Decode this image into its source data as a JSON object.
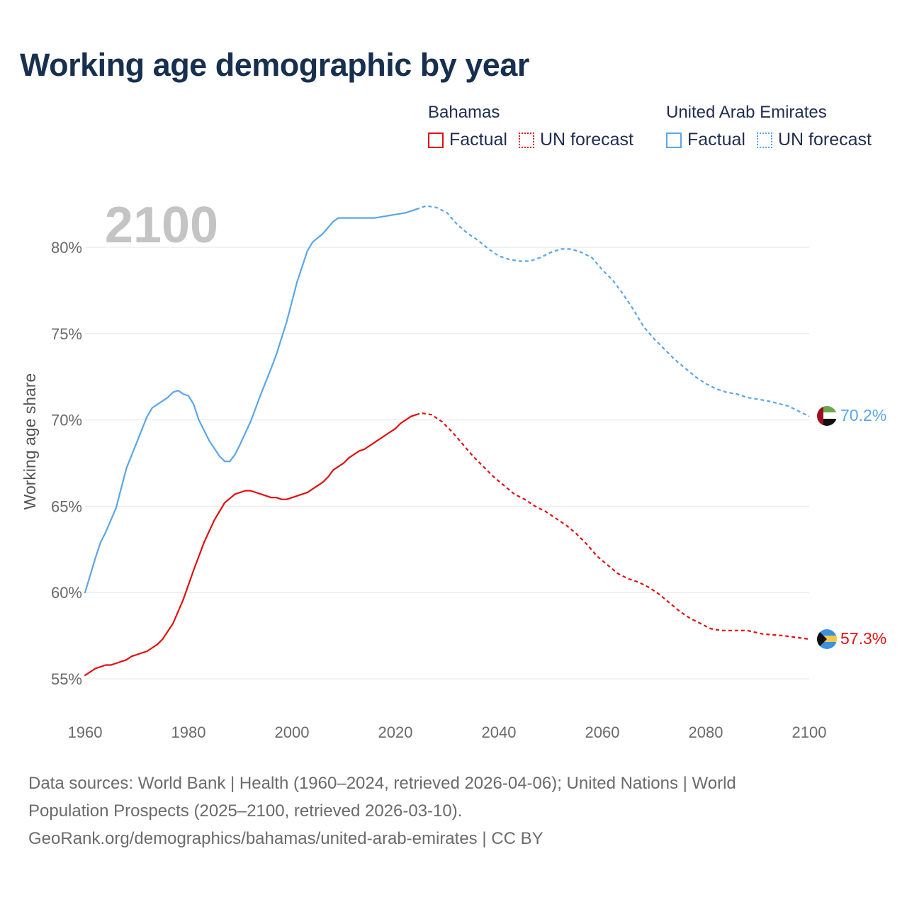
{
  "title": "Working age demographic by year",
  "legend": {
    "groups": [
      {
        "name": "Bahamas",
        "factual_label": "Factual",
        "forecast_label": "UN forecast",
        "color": "#e01010"
      },
      {
        "name": "United Arab Emirates",
        "factual_label": "Factual",
        "forecast_label": "UN forecast",
        "color": "#5aa6e8"
      }
    ]
  },
  "year_watermark": "2100",
  "source": {
    "line1": "Data sources: World Bank | Health (1960–2024, retrieved 2026-04-06); United Nations | World",
    "line2": "Population Prospects (2025–2100, retrieved 2026-03-10).",
    "line3": "GeoRank.org/demographics/bahamas/united-arab-emirates | CC BY"
  },
  "chart_data": {
    "type": "line",
    "title": "Working age demographic by year",
    "xlabel": "",
    "ylabel": "Working age share",
    "xlim": [
      1960,
      2100
    ],
    "ylim": [
      53.5,
      83.5
    ],
    "x_ticks": [
      1960,
      1980,
      2000,
      2020,
      2040,
      2060,
      2080,
      2100
    ],
    "y_ticks": [
      55,
      60,
      65,
      70,
      75,
      80
    ],
    "y_tick_labels": [
      "55%",
      "60%",
      "65%",
      "70%",
      "75%",
      "80%"
    ],
    "grid": true,
    "forecast_start": 2024,
    "series": [
      {
        "name": "Bahamas",
        "color": "#e01010",
        "end_label": "57.3%",
        "flag": "bahamas-flag",
        "points": [
          [
            1960,
            55.2
          ],
          [
            1962,
            55.6
          ],
          [
            1964,
            55.8
          ],
          [
            1965,
            55.8
          ],
          [
            1968,
            56.1
          ],
          [
            1969,
            56.3
          ],
          [
            1972,
            56.6
          ],
          [
            1974,
            57.0
          ],
          [
            1975,
            57.3
          ],
          [
            1977,
            58.2
          ],
          [
            1979,
            59.6
          ],
          [
            1981,
            61.3
          ],
          [
            1983,
            62.9
          ],
          [
            1985,
            64.2
          ],
          [
            1987,
            65.2
          ],
          [
            1989,
            65.7
          ],
          [
            1991,
            65.9
          ],
          [
            1992,
            65.9
          ],
          [
            1994,
            65.7
          ],
          [
            1996,
            65.5
          ],
          [
            1997,
            65.5
          ],
          [
            1998,
            65.4
          ],
          [
            1999,
            65.4
          ],
          [
            2001,
            65.6
          ],
          [
            2003,
            65.8
          ],
          [
            2005,
            66.2
          ],
          [
            2006,
            66.4
          ],
          [
            2007,
            66.7
          ],
          [
            2008,
            67.1
          ],
          [
            2010,
            67.5
          ],
          [
            2011,
            67.8
          ],
          [
            2013,
            68.2
          ],
          [
            2014,
            68.3
          ],
          [
            2016,
            68.7
          ],
          [
            2018,
            69.1
          ],
          [
            2020,
            69.5
          ],
          [
            2021,
            69.8
          ],
          [
            2023,
            70.2
          ],
          [
            2024,
            70.3
          ]
        ],
        "forecast_points": [
          [
            2024,
            70.3
          ],
          [
            2025,
            70.4
          ],
          [
            2027,
            70.3
          ],
          [
            2029,
            69.9
          ],
          [
            2031,
            69.3
          ],
          [
            2033,
            68.6
          ],
          [
            2035,
            67.9
          ],
          [
            2037,
            67.3
          ],
          [
            2039,
            66.7
          ],
          [
            2041,
            66.2
          ],
          [
            2043,
            65.7
          ],
          [
            2045,
            65.4
          ],
          [
            2047,
            65.0
          ],
          [
            2049,
            64.7
          ],
          [
            2051,
            64.3
          ],
          [
            2053,
            63.9
          ],
          [
            2055,
            63.4
          ],
          [
            2057,
            62.8
          ],
          [
            2059,
            62.1
          ],
          [
            2061,
            61.6
          ],
          [
            2063,
            61.1
          ],
          [
            2065,
            60.8
          ],
          [
            2067,
            60.6
          ],
          [
            2069,
            60.3
          ],
          [
            2071,
            59.9
          ],
          [
            2073,
            59.4
          ],
          [
            2075,
            58.9
          ],
          [
            2077,
            58.5
          ],
          [
            2079,
            58.2
          ],
          [
            2081,
            57.9
          ],
          [
            2083,
            57.8
          ],
          [
            2088,
            57.8
          ],
          [
            2091,
            57.6
          ],
          [
            2095,
            57.5
          ],
          [
            2100,
            57.3
          ]
        ]
      },
      {
        "name": "United Arab Emirates",
        "color": "#5aa6e8",
        "end_label": "70.2%",
        "flag": "uae-flag",
        "points": [
          [
            1960,
            60.0
          ],
          [
            1962,
            62.0
          ],
          [
            1963,
            62.9
          ],
          [
            1964,
            63.5
          ],
          [
            1966,
            64.9
          ],
          [
            1968,
            67.2
          ],
          [
            1970,
            68.7
          ],
          [
            1972,
            70.2
          ],
          [
            1973,
            70.7
          ],
          [
            1975,
            71.1
          ],
          [
            1976,
            71.3
          ],
          [
            1977,
            71.6
          ],
          [
            1978,
            71.7
          ],
          [
            1979,
            71.5
          ],
          [
            1980,
            71.4
          ],
          [
            1981,
            70.9
          ],
          [
            1982,
            70.0
          ],
          [
            1984,
            68.8
          ],
          [
            1986,
            67.9
          ],
          [
            1987,
            67.6
          ],
          [
            1988,
            67.6
          ],
          [
            1989,
            68.0
          ],
          [
            1990,
            68.6
          ],
          [
            1992,
            69.9
          ],
          [
            1994,
            71.5
          ],
          [
            1996,
            73.0
          ],
          [
            1997,
            73.8
          ],
          [
            1999,
            75.7
          ],
          [
            2001,
            78.0
          ],
          [
            2003,
            79.8
          ],
          [
            2004,
            80.3
          ],
          [
            2006,
            80.8
          ],
          [
            2008,
            81.5
          ],
          [
            2009,
            81.7
          ],
          [
            2011,
            81.7
          ],
          [
            2016,
            81.7
          ],
          [
            2018,
            81.8
          ],
          [
            2020,
            81.9
          ],
          [
            2022,
            82.0
          ],
          [
            2024,
            82.2
          ]
        ],
        "forecast_points": [
          [
            2024,
            82.2
          ],
          [
            2026,
            82.4
          ],
          [
            2028,
            82.3
          ],
          [
            2030,
            82.0
          ],
          [
            2032,
            81.3
          ],
          [
            2034,
            80.8
          ],
          [
            2036,
            80.4
          ],
          [
            2038,
            79.9
          ],
          [
            2040,
            79.5
          ],
          [
            2042,
            79.3
          ],
          [
            2044,
            79.2
          ],
          [
            2046,
            79.2
          ],
          [
            2048,
            79.4
          ],
          [
            2050,
            79.7
          ],
          [
            2052,
            79.9
          ],
          [
            2054,
            79.9
          ],
          [
            2056,
            79.7
          ],
          [
            2058,
            79.4
          ],
          [
            2060,
            78.7
          ],
          [
            2062,
            78.1
          ],
          [
            2064,
            77.3
          ],
          [
            2066,
            76.4
          ],
          [
            2068,
            75.4
          ],
          [
            2070,
            74.7
          ],
          [
            2072,
            74.1
          ],
          [
            2074,
            73.5
          ],
          [
            2076,
            73.0
          ],
          [
            2078,
            72.5
          ],
          [
            2080,
            72.1
          ],
          [
            2082,
            71.8
          ],
          [
            2084,
            71.6
          ],
          [
            2086,
            71.5
          ],
          [
            2088,
            71.3
          ],
          [
            2092,
            71.1
          ],
          [
            2096,
            70.8
          ],
          [
            2098,
            70.5
          ],
          [
            2100,
            70.2
          ]
        ]
      }
    ]
  }
}
